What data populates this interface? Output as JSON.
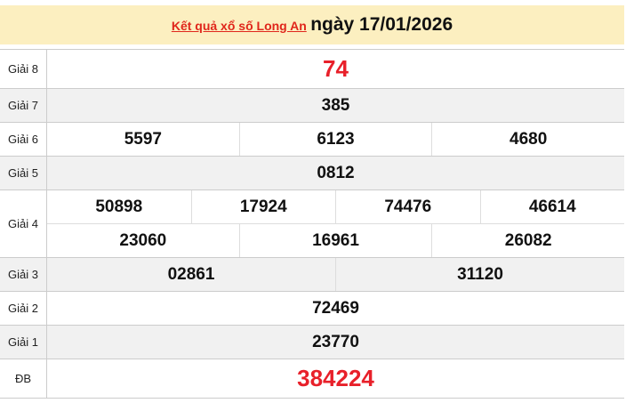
{
  "header": {
    "link": "Kết quả xổ số Long An",
    "date": "ngày 17/01/2026"
  },
  "colors": {
    "header_bg": "#fcefc0",
    "red": "#e8202a"
  },
  "rows": [
    {
      "label": "Giải 8",
      "numbers": [
        "74"
      ]
    },
    {
      "label": "Giải 7",
      "numbers": [
        "385"
      ]
    },
    {
      "label": "Giải 6",
      "numbers": [
        "5597",
        "6123",
        "4680"
      ]
    },
    {
      "label": "Giải 5",
      "numbers": [
        "0812"
      ]
    },
    {
      "label": "Giải 4",
      "numbers": [
        "50898",
        "17924",
        "74476",
        "46614",
        "23060",
        "16961",
        "26082"
      ]
    },
    {
      "label": "Giải 3",
      "numbers": [
        "02861",
        "31120"
      ]
    },
    {
      "label": "Giải 2",
      "numbers": [
        "72469"
      ]
    },
    {
      "label": "Giải 1",
      "numbers": [
        "23770"
      ]
    },
    {
      "label": "ĐB",
      "numbers": [
        "384224"
      ]
    }
  ]
}
